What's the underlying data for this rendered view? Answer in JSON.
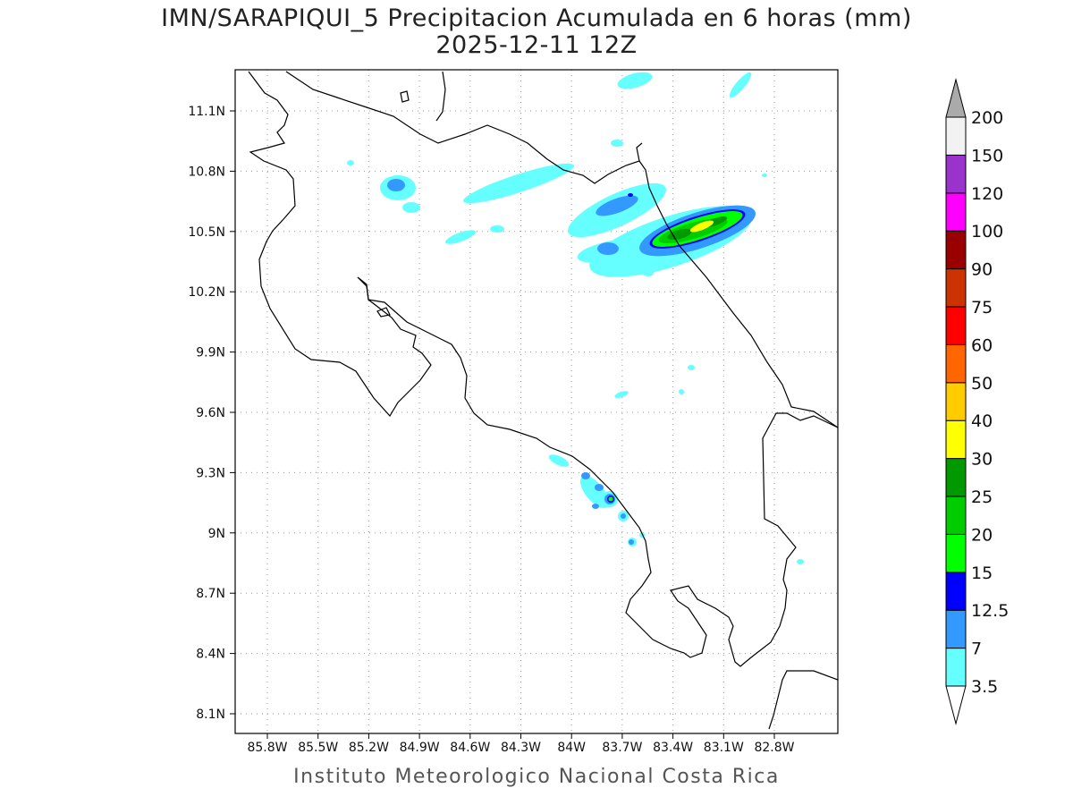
{
  "title": {
    "line1": "IMN/SARAPIQUI_5 Precipitacion Acumulada en 6 horas (mm)",
    "line2": "2025-12-11 12Z"
  },
  "credit": "Instituto Meteorologico Nacional Costa Rica",
  "map": {
    "lat_ticks": [
      "11.1N",
      "10.8N",
      "10.5N",
      "10.2N",
      "9.9N",
      "9.6N",
      "9.3N",
      "9N",
      "8.7N",
      "8.4N",
      "8.1N"
    ],
    "lon_ticks": [
      "85.8W",
      "85.5W",
      "85.2W",
      "84.9W",
      "84.6W",
      "84.3W",
      "84W",
      "83.7W",
      "83.4W",
      "83.1W",
      "82.8W"
    ]
  },
  "colorbar": {
    "levels": [
      {
        "label": "3.5",
        "color": "#66ffff"
      },
      {
        "label": "7",
        "color": "#3399ff"
      },
      {
        "label": "12.5",
        "color": "#0000ff"
      },
      {
        "label": "15",
        "color": "#00ff00"
      },
      {
        "label": "20",
        "color": "#00cc00"
      },
      {
        "label": "25",
        "color": "#009900"
      },
      {
        "label": "30",
        "color": "#ffff00"
      },
      {
        "label": "40",
        "color": "#ffcc00"
      },
      {
        "label": "50",
        "color": "#ff6600"
      },
      {
        "label": "60",
        "color": "#ff0000"
      },
      {
        "label": "75",
        "color": "#cc3300"
      },
      {
        "label": "90",
        "color": "#990000"
      },
      {
        "label": "100",
        "color": "#ff00ff"
      },
      {
        "label": "120",
        "color": "#9933cc"
      },
      {
        "label": "150",
        "color": "#f2f2f2"
      },
      {
        "label": "200",
        "color": "#aaaaaa"
      }
    ]
  }
}
